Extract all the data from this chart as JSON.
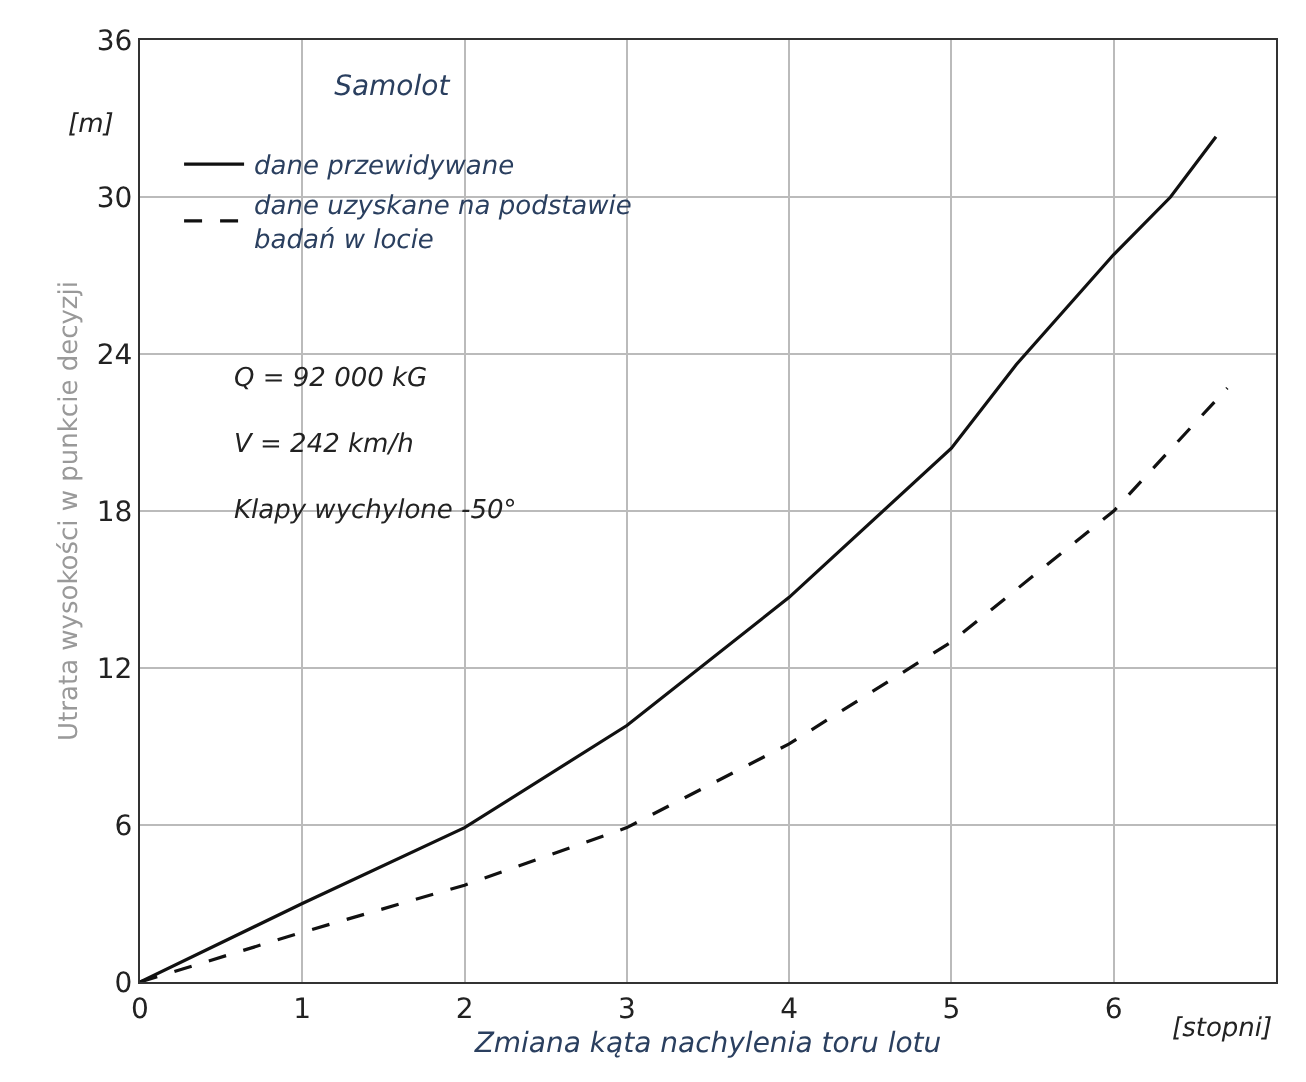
{
  "chart_data": {
    "type": "line",
    "title": "Samolot",
    "xlabel": "Zmiana kąta nachylenia toru lotu",
    "ylabel": "Utrata wysokości w punkcie decyzji",
    "annotations": [
      "[m]",
      "[stopni]",
      "Q = 92 000 kG",
      "V = 242 km/h",
      "Klapy wychylone -50°"
    ],
    "x": [
      0,
      1,
      2,
      3,
      4,
      5,
      5.4,
      6,
      6.35,
      6.63
    ],
    "series": [
      {
        "name": "dane przewidywane",
        "color": "#111111",
        "line_style": "solid",
        "values": [
          0,
          3.0,
          5.9,
          9.8,
          14.7,
          20.4,
          23.6,
          27.8,
          30,
          32.3
        ]
      },
      {
        "name": "dane uzyskane na podstawie badań w locie",
        "color": "#111111",
        "line_style": "dashed",
        "x": [
          0,
          1,
          2,
          3,
          4,
          5,
          6,
          6.7
        ],
        "values": [
          0,
          1.9,
          3.7,
          5.9,
          9.1,
          13.0,
          18.0,
          22.7
        ]
      }
    ],
    "xlim": [
      0,
      7
    ],
    "xticks": [
      0,
      1,
      2,
      3,
      4,
      5,
      6
    ],
    "ylim": [
      0,
      36
    ],
    "yticks": [
      0,
      6,
      12,
      18,
      24,
      30,
      36
    ],
    "grid": true,
    "legend": "top left",
    "marker": "none"
  }
}
